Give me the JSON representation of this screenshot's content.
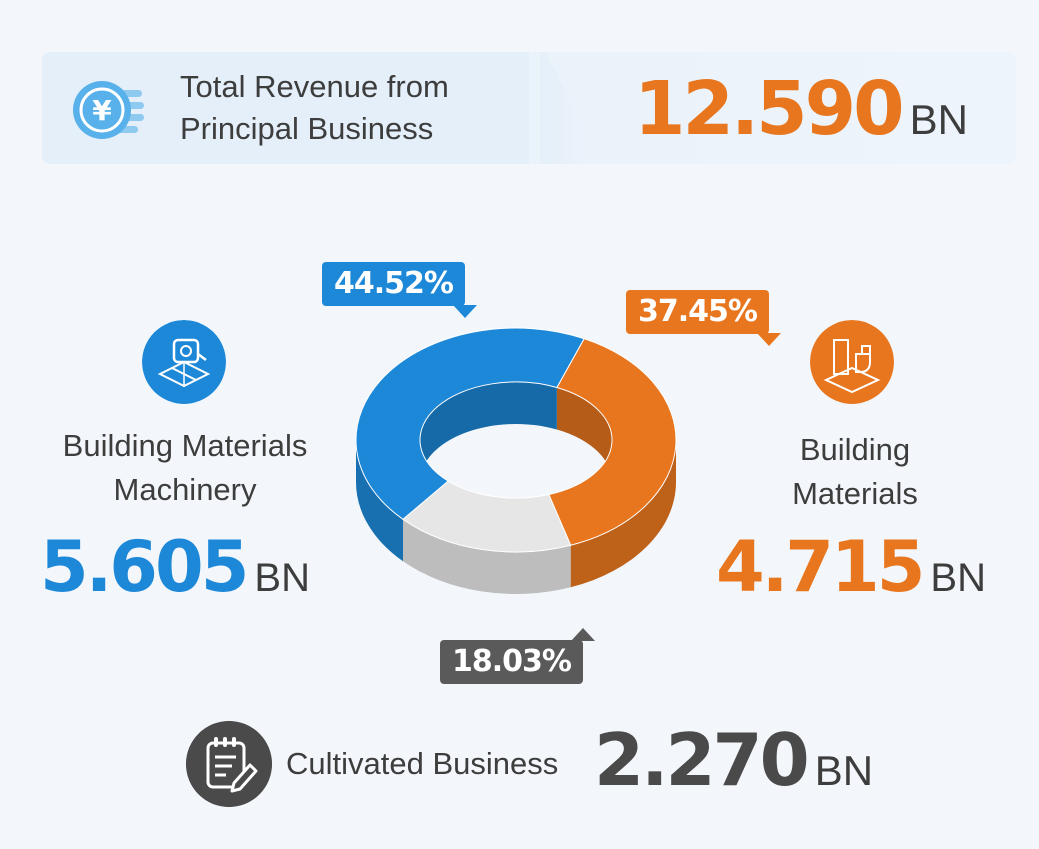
{
  "header": {
    "title_line1": "Total Revenue from",
    "title_line2": "Principal Business",
    "total_value": "12.590",
    "unit": "BN",
    "icon": "yen-coin-icon"
  },
  "segments": [
    {
      "key": "machinery",
      "label_line1": "Building Materials",
      "label_line2": "Machinery",
      "value": "5.605",
      "unit": "BN",
      "percent_label": "44.52%",
      "color": "#1e88d8",
      "icon": "tape-measure-floorplan-icon"
    },
    {
      "key": "materials",
      "label_line1": "Building",
      "label_line2": "Materials",
      "value": "4.715",
      "unit": "BN",
      "percent_label": "37.45%",
      "color": "#e8761f",
      "icon": "bathroom-fixtures-icon"
    },
    {
      "key": "cultivated",
      "label": "Cultivated Business",
      "value": "2.270",
      "unit": "BN",
      "percent_label": "18.03%",
      "color": "#4a4a4a",
      "icon": "notepad-pencil-icon"
    }
  ],
  "chart_data": {
    "type": "pie",
    "categories": [
      "Building Materials Machinery",
      "Building Materials",
      "Cultivated Business"
    ],
    "values": [
      5.605,
      4.715,
      2.27
    ],
    "percentages": [
      44.52,
      37.45,
      18.03
    ],
    "total": 12.59,
    "colors": [
      "#1e88d8",
      "#e8761f",
      "#e6e6e6"
    ],
    "legend": "none"
  }
}
